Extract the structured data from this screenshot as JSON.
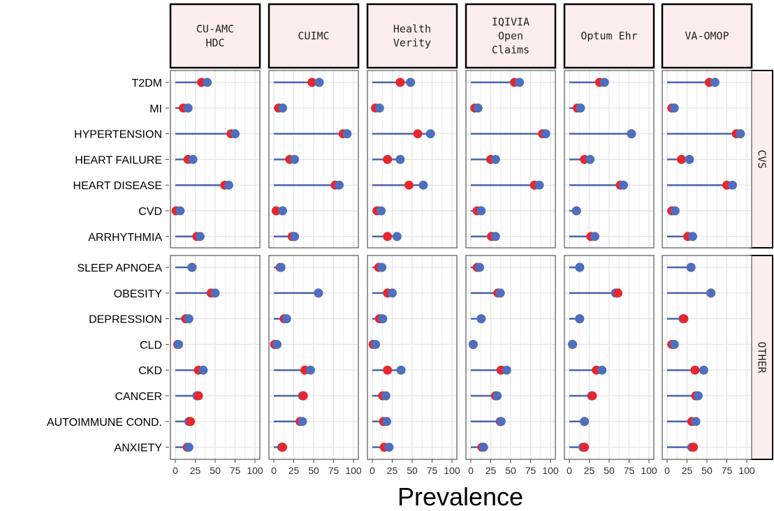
{
  "chart_data": {
    "type": "dumbbell",
    "xlabel": "Prevalence",
    "xlim": [
      0,
      100
    ],
    "xticks": [
      0,
      25,
      50,
      75,
      100
    ],
    "grid": true,
    "colors": {
      "marker_red": "#e8262d",
      "marker_blue": "#4d6fbd",
      "segment": "#4a63ad",
      "strip_fill": "#fdeeee",
      "panel_border": "#555555",
      "grid": "#e3e3e3"
    },
    "panels": [
      "CU-AMC\nHDC",
      "CUIMC",
      "Health\nVerity",
      "IQIVIA\nOpen\nClaims",
      "Optum Ehr",
      "VA-OMOP"
    ],
    "groups": [
      {
        "name": "CVS",
        "conditions": [
          "T2DM",
          "MI",
          "HYPERTENSION",
          "HEART FAILURE",
          "HEART DISEASE",
          "CVD",
          "ARRHYTHMIA"
        ],
        "red": [
          [
            33,
            10,
            70,
            16,
            62,
            1,
            27
          ],
          [
            48,
            6,
            87,
            20,
            77,
            3,
            23
          ],
          [
            35,
            4,
            57,
            19,
            46,
            6,
            19
          ],
          [
            55,
            5,
            90,
            25,
            80,
            8,
            26
          ],
          [
            38,
            10,
            78,
            19,
            64,
            9,
            27
          ],
          [
            53,
            6,
            87,
            18,
            75,
            6,
            26
          ]
        ],
        "blue": [
          [
            40,
            16,
            75,
            22,
            67,
            6,
            31
          ],
          [
            57,
            11,
            92,
            26,
            82,
            11,
            26
          ],
          [
            48,
            9,
            73,
            35,
            64,
            11,
            31
          ],
          [
            61,
            9,
            94,
            31,
            86,
            13,
            31
          ],
          [
            44,
            14,
            78,
            26,
            68,
            9,
            32
          ],
          [
            60,
            9,
            92,
            28,
            82,
            10,
            32
          ]
        ]
      },
      {
        "name": "OTHER",
        "conditions": [
          "SLEEP APNOEA",
          "OBESITY",
          "DEPRESSION",
          "CLD",
          "CKD",
          "CANCER",
          "AUTOIMMUNE COND.",
          "ANXIETY"
        ],
        "red": [
          [
            21,
            45,
            13,
            3,
            29,
            29,
            19,
            15
          ],
          [
            8,
            56,
            13,
            1,
            39,
            37,
            33,
            11
          ],
          [
            8,
            19,
            9,
            1,
            19,
            13,
            14,
            15
          ],
          [
            8,
            34,
            13,
            3,
            38,
            31,
            37,
            14
          ],
          [
            13,
            61,
            13,
            4,
            34,
            29,
            19,
            19
          ],
          [
            30,
            55,
            21,
            6,
            35,
            36,
            31,
            33
          ]
        ],
        "blue": [
          [
            21,
            50,
            17,
            4,
            35,
            27,
            17,
            17
          ],
          [
            9,
            56,
            16,
            4,
            46,
            36,
            36,
            10
          ],
          [
            12,
            25,
            13,
            4,
            36,
            17,
            18,
            21
          ],
          [
            11,
            37,
            13,
            3,
            45,
            33,
            38,
            16
          ],
          [
            13,
            58,
            13,
            4,
            41,
            28,
            19,
            17
          ],
          [
            30,
            55,
            20,
            9,
            46,
            39,
            36,
            31
          ]
        ]
      }
    ]
  }
}
